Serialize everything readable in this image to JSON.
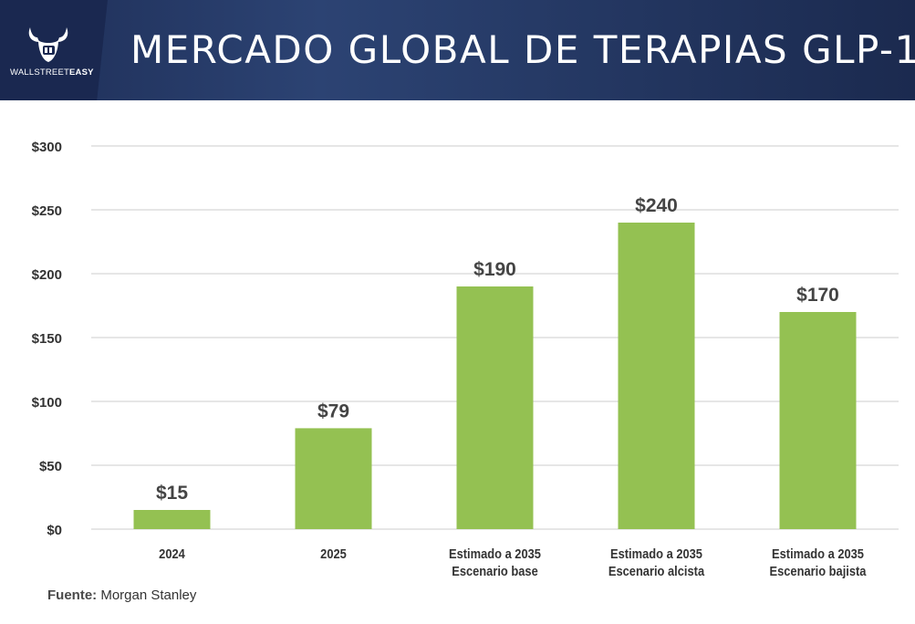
{
  "brand": {
    "logo_text_regular": "WALLSTREET",
    "logo_text_bold": "EASY"
  },
  "title": "MERCADO GLOBAL DE TERAPIAS GLP-1",
  "source": {
    "label": "Fuente:",
    "value": "Morgan Stanley"
  },
  "colors": {
    "bar": "#94c152",
    "header": "#22355f",
    "grid": "#cccccc",
    "axis_text": "#333333"
  },
  "chart_data": {
    "type": "bar",
    "title": "MERCADO GLOBAL DE TERAPIAS GLP-1",
    "xlabel": "",
    "ylabel": "",
    "categories": [
      [
        "2024"
      ],
      [
        "2025"
      ],
      [
        "Estimado a 2035",
        "Escenario base"
      ],
      [
        "Estimado a 2035",
        "Escenario alcista"
      ],
      [
        "Estimado a 2035",
        "Escenario bajista"
      ]
    ],
    "values": [
      15,
      79,
      190,
      240,
      170
    ],
    "data_labels": [
      "$15",
      "$79",
      "$190",
      "$240",
      "$170"
    ],
    "ylim": [
      0,
      300
    ],
    "yticks": [
      0,
      50,
      100,
      150,
      200,
      250,
      300
    ],
    "ytick_labels": [
      "$0",
      "$50",
      "$100",
      "$150",
      "$200",
      "$250",
      "$300"
    ],
    "grid": true,
    "legend": false
  }
}
